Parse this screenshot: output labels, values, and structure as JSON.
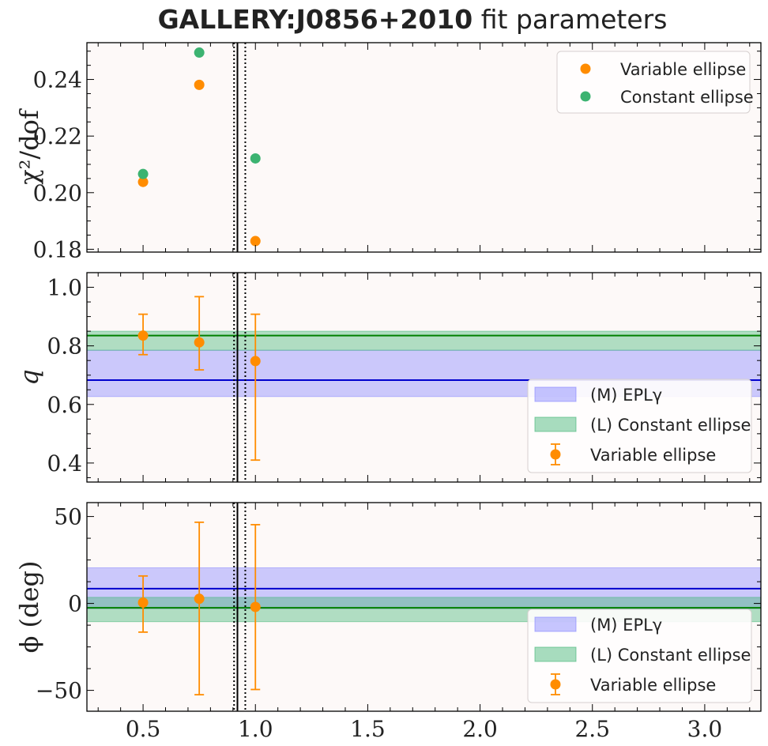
{
  "title": {
    "bold": "GALLERY:J0856+2010",
    "rest": " fit parameters"
  },
  "colors": {
    "variable": "#ff8c00",
    "constant": "#3cb371",
    "epl": "#0000cd",
    "epl_band": "#8080ff",
    "const_line": "#008000",
    "const_band": "#3cb371",
    "background": "#fdf9f8"
  },
  "chart_data": [
    {
      "type": "scatter",
      "ylabel": "χ²/dof",
      "xlim": [
        0.25,
        3.25
      ],
      "ylim": [
        0.179,
        0.253
      ],
      "yticks": [
        0.18,
        0.2,
        0.22,
        0.24
      ],
      "ytick_labels": [
        "0.18",
        "0.20",
        "0.22",
        "0.24"
      ],
      "vlines": {
        "solid": 0.92,
        "dotted": [
          0.905,
          0.955
        ]
      },
      "series": [
        {
          "name": "Variable ellipse",
          "x": [
            0.5,
            0.75,
            1.0
          ],
          "y": [
            0.2038,
            0.2381,
            0.1829
          ]
        },
        {
          "name": "Constant ellipse",
          "x": [
            0.5,
            0.75,
            1.0
          ],
          "y": [
            0.2066,
            0.2495,
            0.2121
          ]
        }
      ],
      "legend": {
        "position": "top-right",
        "entries": [
          "Variable ellipse",
          "Constant ellipse"
        ]
      }
    },
    {
      "type": "scatter",
      "ylabel": "q",
      "xlim": [
        0.25,
        3.25
      ],
      "ylim": [
        0.335,
        1.05
      ],
      "yticks": [
        0.4,
        0.6,
        0.8,
        1.0
      ],
      "ytick_labels": [
        "0.4",
        "0.6",
        "0.8",
        "1.0"
      ],
      "vlines": {
        "solid": 0.92,
        "dotted": [
          0.905,
          0.955
        ]
      },
      "bands": [
        {
          "name": "(M) EPLγ",
          "center": 0.683,
          "low": 0.627,
          "high": 0.785
        },
        {
          "name": "(L) Constant ellipse",
          "center": 0.835,
          "low": 0.785,
          "high": 0.85
        }
      ],
      "series": [
        {
          "name": "Variable ellipse",
          "x": [
            0.5,
            0.75,
            1.0
          ],
          "y": [
            0.835,
            0.812,
            0.748
          ],
          "err_low": [
            0.77,
            0.718,
            0.41
          ],
          "err_high": [
            0.908,
            0.968,
            0.908
          ]
        }
      ],
      "legend": {
        "position": "lower-right",
        "entries": [
          "(M) EPLγ",
          "(L) Constant ellipse",
          "Variable ellipse"
        ]
      }
    },
    {
      "type": "scatter",
      "ylabel": "ϕ (deg)",
      "xlim": [
        0.25,
        3.25
      ],
      "ylim": [
        -62,
        58
      ],
      "yticks": [
        -50,
        0,
        50
      ],
      "ytick_labels": [
        "−50",
        "0",
        "50"
      ],
      "xticks": [
        0.5,
        1.0,
        1.5,
        2.0,
        2.5,
        3.0
      ],
      "xtick_labels": [
        "0.5",
        "1.0",
        "1.5",
        "2.0",
        "2.5",
        "3.0"
      ],
      "vlines": {
        "solid": 0.92,
        "dotted": [
          0.905,
          0.955
        ]
      },
      "bands": [
        {
          "name": "(M) EPLγ",
          "center": 8.5,
          "low": -3,
          "high": 20.5
        },
        {
          "name": "(L) Constant ellipse",
          "center": -2.5,
          "low": -10.5,
          "high": 3.5
        }
      ],
      "series": [
        {
          "name": "Variable ellipse",
          "x": [
            0.5,
            0.75,
            1.0
          ],
          "y": [
            0.5,
            2.7,
            -2.0
          ],
          "err_low": [
            -16.5,
            -52.5,
            -49.5
          ],
          "err_high": [
            15.8,
            46.7,
            45.3
          ]
        }
      ],
      "legend": {
        "position": "lower-right",
        "entries": [
          "(M) EPLγ",
          "(L) Constant ellipse",
          "Variable ellipse"
        ]
      }
    }
  ]
}
